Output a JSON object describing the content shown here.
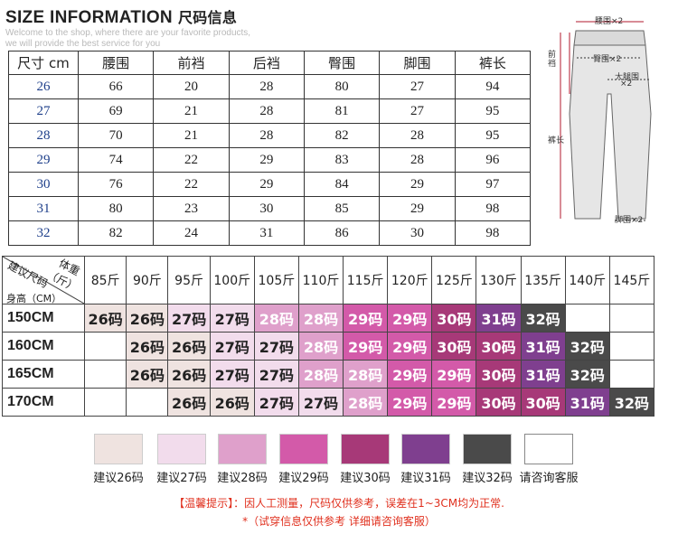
{
  "header": {
    "title": "SIZE INFORMATION",
    "title_zh": "尺码信息",
    "subtitle_line1": "Welcome to the shop, where there are your favorite products,",
    "subtitle_line2": "we will provide the best service for you"
  },
  "size_table": {
    "headers": [
      "尺寸 cm",
      "腰围",
      "前裆",
      "后裆",
      "臀围",
      "脚围",
      "裤长"
    ],
    "rows": [
      [
        "26",
        "66",
        "20",
        "28",
        "80",
        "27",
        "94"
      ],
      [
        "27",
        "69",
        "21",
        "28",
        "81",
        "27",
        "95"
      ],
      [
        "28",
        "70",
        "21",
        "28",
        "82",
        "28",
        "95"
      ],
      [
        "29",
        "74",
        "22",
        "29",
        "83",
        "28",
        "96"
      ],
      [
        "30",
        "76",
        "22",
        "29",
        "84",
        "29",
        "97"
      ],
      [
        "31",
        "80",
        "23",
        "30",
        "85",
        "29",
        "98"
      ],
      [
        "32",
        "82",
        "24",
        "31",
        "86",
        "30",
        "98"
      ]
    ]
  },
  "diagram": {
    "waist": "腰围×2",
    "hip": "臀围×2",
    "front_rise": "前裆",
    "thigh": "大腿围",
    "thigh_x2": "×2",
    "length": "裤长",
    "hem": "脚围×2"
  },
  "weight_table": {
    "corner_weight": "体重（斤）",
    "corner_size": "建议尺码",
    "corner_height": "身高（CM）",
    "weights": [
      "85斤",
      "90斤",
      "95斤",
      "100斤",
      "105斤",
      "110斤",
      "115斤",
      "120斤",
      "125斤",
      "130斤",
      "135斤",
      "140斤",
      "145斤"
    ],
    "rows": [
      {
        "height": "150CM",
        "cells": [
          "26码",
          "26码",
          "27码",
          "27码",
          "28码",
          "28码",
          "29码",
          "29码",
          "30码",
          "31码",
          "32码",
          "",
          ""
        ]
      },
      {
        "height": "160CM",
        "cells": [
          "",
          "26码",
          "26码",
          "27码",
          "27码",
          "28码",
          "29码",
          "29码",
          "30码",
          "30码",
          "31码",
          "32码",
          ""
        ]
      },
      {
        "height": "165CM",
        "cells": [
          "",
          "26码",
          "26码",
          "27码",
          "27码",
          "28码",
          "28码",
          "29码",
          "29码",
          "30码",
          "31码",
          "32码",
          ""
        ]
      },
      {
        "height": "170CM",
        "cells": [
          "",
          "",
          "26码",
          "26码",
          "27码",
          "27码",
          "28码",
          "29码",
          "29码",
          "30码",
          "30码",
          "31码",
          "32码"
        ]
      }
    ]
  },
  "legend": {
    "items": [
      {
        "label": "建议26码",
        "color": "#efe3e0"
      },
      {
        "label": "建议27码",
        "color": "#f2dcec"
      },
      {
        "label": "建议28码",
        "color": "#dfa0cb"
      },
      {
        "label": "建议29码",
        "color": "#d35aa9"
      },
      {
        "label": "建议30码",
        "color": "#a73978"
      },
      {
        "label": "建议31码",
        "color": "#7f3f8f"
      },
      {
        "label": "建议32码",
        "color": "#4a4a4a"
      },
      {
        "label": "请咨询客服",
        "color": "#ffffff"
      }
    ]
  },
  "notes": {
    "line1": "【温馨提示】：因人工测量，尺码仅供参考，误差在1~3CM均为正常.",
    "line2": "*（试穿信息仅供参考 详细请咨询客服）"
  },
  "colors": {
    "accent": "#e0301e",
    "size_text": "#1e3f8a"
  }
}
